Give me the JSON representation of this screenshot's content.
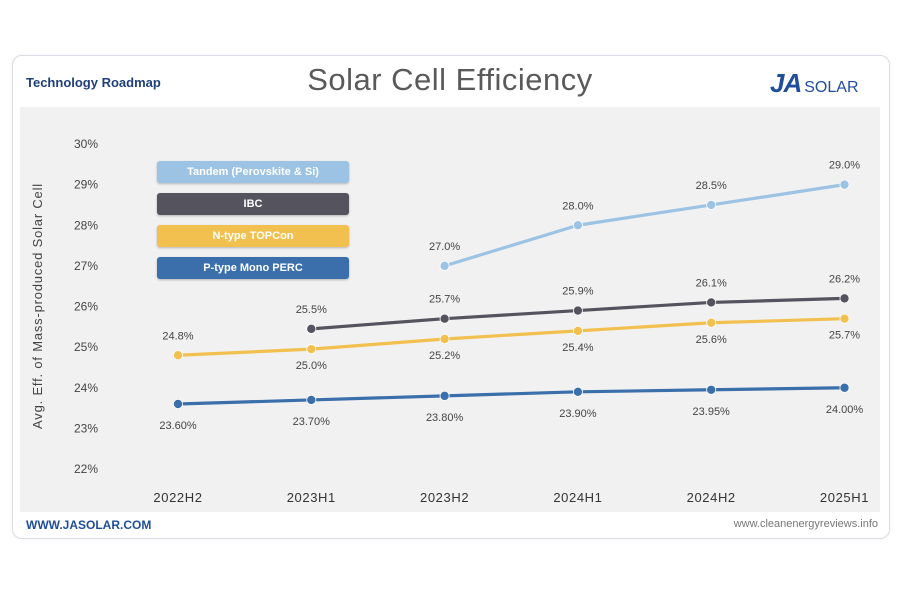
{
  "header": {
    "subtitle": "Technology Roadmap",
    "title": "Solar Cell Efficiency",
    "logo_ja": "JA",
    "logo_solar": "SOLAR"
  },
  "footer": {
    "website": "WWW.JASOLAR.COM",
    "source": "www.cleanenergyreviews.info"
  },
  "colors": {
    "tandem": "#9cc3e3",
    "ibc": "#55535e",
    "topcon": "#f2c04e",
    "perc": "#3b6fab"
  },
  "chart_data": {
    "type": "line",
    "title": "Solar Cell Efficiency",
    "ylabel": "Avg. Eff. of Mass-produced Solar Cell",
    "xlabel": "",
    "ylim": [
      22,
      30
    ],
    "y_ticks": [
      "22%",
      "23%",
      "24%",
      "25%",
      "26%",
      "27%",
      "28%",
      "29%",
      "30%"
    ],
    "categories": [
      "2022H2",
      "2023H1",
      "2023H2",
      "2024H1",
      "2024H2",
      "2025H1"
    ],
    "legend_position": "top-left",
    "series": [
      {
        "name": "Tandem (Perovskite & Si)",
        "key": "tandem",
        "values": [
          null,
          null,
          27.0,
          28.0,
          28.5,
          29.0
        ],
        "labels": [
          "",
          "",
          "27.0%",
          "28.0%",
          "28.5%",
          "29.0%"
        ],
        "label_pos": "above"
      },
      {
        "name": "IBC",
        "key": "ibc",
        "values": [
          null,
          25.45,
          25.7,
          25.9,
          26.1,
          26.2
        ],
        "labels": [
          "",
          "25.5%",
          "25.7%",
          "25.9%",
          "26.1%",
          "26.2%"
        ],
        "label_pos": "above"
      },
      {
        "name": "N-type TOPCon",
        "key": "topcon",
        "values": [
          24.8,
          24.95,
          25.2,
          25.4,
          25.6,
          25.7
        ],
        "labels": [
          "24.8%",
          "25.0%",
          "25.2%",
          "25.4%",
          "25.6%",
          "25.7%"
        ],
        "label_pos": "mixed"
      },
      {
        "name": "P-type Mono PERC",
        "key": "perc",
        "values": [
          23.6,
          23.7,
          23.8,
          23.9,
          23.95,
          24.0
        ],
        "labels": [
          "23.60%",
          "23.70%",
          "23.80%",
          "23.90%",
          "23.95%",
          "24.00%"
        ],
        "label_pos": "below"
      }
    ]
  }
}
